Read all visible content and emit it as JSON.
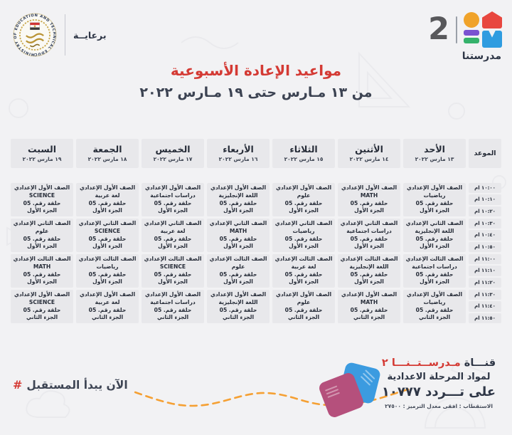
{
  "sponsor": {
    "patronage_label": "برعايــة",
    "seal_text": "MINISTRY OF EDUCATION AND TECHNICAL EDUCATION"
  },
  "channel_logo": {
    "number": "2",
    "name": "مدرستنا"
  },
  "title": {
    "heading": "مواعيد الإعادة الأسبوعية",
    "date_range": "من ١٣ مـارس حتى ١٩ مـارس ٢٠٢٢"
  },
  "schedule": {
    "time_header": "الموعد",
    "time_slots": [
      "١٠:٠٠ ام",
      "١٠:١٠ ام",
      "١٠:٢٠ ام",
      "١٠:٣٠ ام",
      "١٠:٤٠ ام",
      "١٠:٥٠ ام",
      "١١:٠٠ ام",
      "١١:١٠ ام",
      "١١:٢٠ ام",
      "١١:٣٠ ام",
      "١١:٤٠ ام",
      "١١:٥٠ ام"
    ],
    "days": [
      {
        "name": "الأحد",
        "date": "١٣ مارس ٢٠٢٢",
        "programs": [
          {
            "grade": "الصف الأول الإعدادي",
            "subject": "رياضيات",
            "episode": "حلقة رقم. 05",
            "part": "الجزء الأول"
          },
          {
            "grade": "الصف الثاني الإعدادي",
            "subject": "اللغة الإنجليزية",
            "episode": "حلقة رقم. 05",
            "part": "الجزء الأول"
          },
          {
            "grade": "الصف الثالث الإعدادي",
            "subject": "دراسات اجتماعية",
            "episode": "حلقة رقم. 05",
            "part": "الجزء الأول"
          },
          {
            "grade": "الصف الأول الإعدادي",
            "subject": "رياضيات",
            "episode": "حلقة رقم. 05",
            "part": "الجزء الثاني"
          }
        ]
      },
      {
        "name": "الأثنين",
        "date": "١٤ مارس ٢٠٢٢",
        "programs": [
          {
            "grade": "الصف الأول الإعدادي",
            "subject": "MATH",
            "episode": "حلقة رقم. 05",
            "part": "الجزء الأول"
          },
          {
            "grade": "الصف الثاني الإعدادي",
            "subject": "دراسات اجتماعية",
            "episode": "حلقة رقم. 05",
            "part": "الجزء الأول"
          },
          {
            "grade": "الصف الثالث الإعدادي",
            "subject": "اللغة الإنجليزية",
            "episode": "حلقة رقم. 05",
            "part": "الجزء الأول"
          },
          {
            "grade": "الصف الأول الإعدادي",
            "subject": "MATH",
            "episode": "حلقة رقم. 05",
            "part": "الجزء الثاني"
          }
        ]
      },
      {
        "name": "الثلاثاء",
        "date": "١٥ مارس ٢٠٢٢",
        "programs": [
          {
            "grade": "الصف الأول الإعدادي",
            "subject": "علوم",
            "episode": "حلقة رقم. 05",
            "part": "الجزء الأول"
          },
          {
            "grade": "الصف الثاني الإعدادي",
            "subject": "رياضيات",
            "episode": "حلقة رقم. 05",
            "part": "الجزء الأول"
          },
          {
            "grade": "الصف الثالث الإعدادي",
            "subject": "لغة عربية",
            "episode": "حلقة رقم. 05",
            "part": "الجزء الأول"
          },
          {
            "grade": "الصف الأول الإعدادي",
            "subject": "علوم",
            "episode": "حلقة رقم. 05",
            "part": "الجزء الثاني"
          }
        ]
      },
      {
        "name": "الأربعاء",
        "date": "١٦ مارس ٢٠٢٢",
        "programs": [
          {
            "grade": "الصف الأول الإعدادي",
            "subject": "اللغة الإنجليزية",
            "episode": "حلقة رقم. 05",
            "part": "الجزء الأول"
          },
          {
            "grade": "الصف الثاني الإعدادي",
            "subject": "MATH",
            "episode": "حلقة رقم. 05",
            "part": "الجزء الأول"
          },
          {
            "grade": "الصف الثالث الإعدادي",
            "subject": "علوم",
            "episode": "حلقة رقم. 05",
            "part": "الجزء الأول"
          },
          {
            "grade": "الصف الأول الإعدادي",
            "subject": "اللغة الإنجليزية",
            "episode": "حلقة رقم. 05",
            "part": "الجزء الثاني"
          }
        ]
      },
      {
        "name": "الخميس",
        "date": "١٧ مارس ٢٠٢٢",
        "programs": [
          {
            "grade": "الصف الأول الإعدادي",
            "subject": "دراسات اجتماعية",
            "episode": "حلقة رقم. 05",
            "part": "الجزء الأول"
          },
          {
            "grade": "الصف الثاني الإعدادي",
            "subject": "لغة عربية",
            "episode": "حلقة رقم. 05",
            "part": "الجزء الأول"
          },
          {
            "grade": "الصف الثالث الإعدادي",
            "subject": "SCIENCE",
            "episode": "حلقة رقم. 05",
            "part": "الجزء الأول"
          },
          {
            "grade": "الصف الأول الإعدادي",
            "subject": "دراسات اجتماعية",
            "episode": "حلقة رقم. 05",
            "part": "الجزء الثاني"
          }
        ]
      },
      {
        "name": "الجمعة",
        "date": "١٨ مارس ٢٠٢٢",
        "programs": [
          {
            "grade": "الصف الأول الإعدادي",
            "subject": "لغة عربية",
            "episode": "حلقة رقم. 05",
            "part": "الجزء الأول"
          },
          {
            "grade": "الصف الثاني الإعدادي",
            "subject": "SCIENCE",
            "episode": "حلقة رقم. 05",
            "part": "الجزء الأول"
          },
          {
            "grade": "الصف الثالث الإعدادي",
            "subject": "رياضيات",
            "episode": "حلقة رقم. 05",
            "part": "الجزء الأول"
          },
          {
            "grade": "الصف الأول الإعدادي",
            "subject": "لغة عربية",
            "episode": "حلقة رقم. 05",
            "part": "الجزء الثاني"
          }
        ]
      },
      {
        "name": "السبت",
        "date": "١٩ مارس ٢٠٢٢",
        "programs": [
          {
            "grade": "الصف الأول الإعدادي",
            "subject": "SCIENCE",
            "episode": "حلقة رقم. 05",
            "part": "الجزء الأول"
          },
          {
            "grade": "الصف الثاني الإعدادي",
            "subject": "علوم",
            "episode": "حلقة رقم. 05",
            "part": "الجزء الأول"
          },
          {
            "grade": "الصف الثالث الإعدادي",
            "subject": "MATH",
            "episode": "حلقة رقم. 05",
            "part": "الجزء الأول"
          },
          {
            "grade": "الصف الأول الإعدادي",
            "subject": "SCIENCE",
            "episode": "حلقة رقم. 05",
            "part": "الجزء الثاني"
          }
        ]
      }
    ]
  },
  "footer": {
    "hashtag_symbol": "#",
    "hashtag_phrase": "الآن يبدأ المستقبل",
    "channel_word": "قنـــاة",
    "channel_name": "مـدرســتــنـــا ٢",
    "line2": "لمواد المرحلة الاعدادية",
    "line3": "على تـــردد ١٠٧٧٧",
    "line4": "الاستقطاب : افقى   معدل الترميز : ٢٧٥٠٠"
  },
  "colors": {
    "bg": "#f2f2f4",
    "ink": "#262c38",
    "navy": "#2e3646",
    "red": "#d43a34",
    "orange_dash": "#f5a033",
    "cell": "#e8e8eb",
    "num_gray": "#58585b",
    "logo_orange": "#f0a32a",
    "logo_red": "#e8473f",
    "logo_purple": "#7a52d1",
    "logo_green": "#35b26b",
    "logo_blue": "#2f9ce0",
    "book_blue": "#3b9be0",
    "book_pink": "#b5507c",
    "seal_gold": "#c2a55a"
  }
}
